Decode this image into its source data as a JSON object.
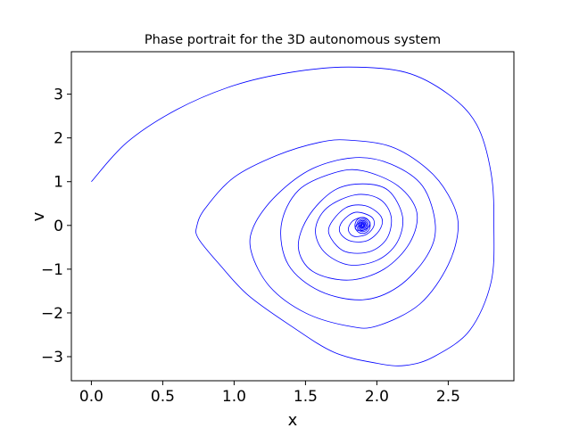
{
  "chart_data": {
    "type": "line",
    "title": "Phase portrait for the 3D autonomous system",
    "xlabel": "x",
    "ylabel": "v",
    "xlim": [
      -0.14,
      2.96
    ],
    "ylim": [
      -3.55,
      3.97
    ],
    "xticks": [
      0.0,
      0.5,
      1.0,
      1.5,
      2.0,
      2.5
    ],
    "xtick_labels": [
      "0.0",
      "0.5",
      "1.0",
      "1.5",
      "2.0",
      "2.5"
    ],
    "yticks": [
      -3,
      -2,
      -1,
      0,
      1,
      2,
      3
    ],
    "ytick_labels": [
      "−3",
      "−2",
      "−1",
      "0",
      "1",
      "2",
      "3"
    ],
    "grid": false,
    "legend": "none",
    "series": [
      {
        "color": "#0000ff",
        "start": [
          0.0,
          1.0
        ],
        "equilibrium": [
          1.9,
          0.0
        ],
        "spiral_direction": "clockwise",
        "x": [
          0.0,
          0.25,
          0.6,
          1.0,
          1.4,
          1.8,
          2.2,
          2.5,
          2.7,
          2.8,
          2.82,
          2.8,
          2.65,
          2.4,
          2.2,
          2.0,
          1.7,
          1.4,
          1.1,
          0.9,
          0.75,
          0.74,
          0.8,
          1.0,
          1.3,
          1.6,
          1.8,
          2.1,
          2.35,
          2.5,
          2.57,
          2.5,
          2.3,
          2.0,
          1.8,
          1.5,
          1.25,
          1.12,
          1.14,
          1.3,
          1.55,
          1.85,
          2.1,
          2.32,
          2.41,
          2.35,
          2.15,
          1.9,
          1.6,
          1.38,
          1.33,
          1.45,
          1.7,
          1.9,
          2.15,
          2.28,
          2.23,
          2.05,
          1.8,
          1.55,
          1.45,
          1.52,
          1.7,
          1.9,
          2.08,
          2.18,
          2.14,
          2.0,
          1.8,
          1.63,
          1.57,
          1.65,
          1.85,
          2.02,
          2.1,
          2.07,
          1.95,
          1.78,
          1.68,
          1.67,
          1.78,
          1.92,
          2.03,
          2.02,
          1.93,
          1.81,
          1.74,
          1.76,
          1.85,
          1.96,
          1.98,
          1.93,
          1.84,
          1.8,
          1.83,
          1.9,
          1.95,
          1.94,
          1.89,
          1.85,
          1.86,
          1.9,
          1.92,
          1.91,
          1.89,
          1.88,
          1.89,
          1.9
        ],
        "y": [
          1.0,
          1.9,
          2.65,
          3.2,
          3.5,
          3.62,
          3.5,
          3.0,
          2.3,
          1.2,
          0.0,
          -1.3,
          -2.4,
          -3.0,
          -3.2,
          -3.15,
          -2.9,
          -2.3,
          -1.6,
          -0.9,
          -0.3,
          0.0,
          0.4,
          1.1,
          1.6,
          1.9,
          1.95,
          1.8,
          1.3,
          0.7,
          0.0,
          -0.9,
          -1.8,
          -2.3,
          -2.3,
          -2.0,
          -1.4,
          -0.6,
          0.0,
          0.7,
          1.3,
          1.55,
          1.4,
          0.9,
          0.0,
          -0.7,
          -1.4,
          -1.7,
          -1.5,
          -0.9,
          0.0,
          0.8,
          1.2,
          1.25,
          0.9,
          0.3,
          -0.4,
          -1.0,
          -1.25,
          -1.05,
          -0.5,
          0.2,
          0.8,
          0.95,
          0.8,
          0.2,
          -0.4,
          -0.8,
          -0.9,
          -0.6,
          -0.1,
          0.4,
          0.7,
          0.6,
          0.2,
          -0.3,
          -0.6,
          -0.6,
          -0.3,
          0.0,
          0.4,
          0.45,
          0.2,
          -0.1,
          -0.35,
          -0.35,
          -0.15,
          0.1,
          0.3,
          0.2,
          0.0,
          -0.2,
          -0.25,
          -0.1,
          0.1,
          0.18,
          0.08,
          -0.05,
          -0.12,
          -0.08,
          0.02,
          0.08,
          0.05,
          -0.02,
          -0.05,
          -0.02,
          0.01,
          0.0
        ]
      }
    ]
  }
}
